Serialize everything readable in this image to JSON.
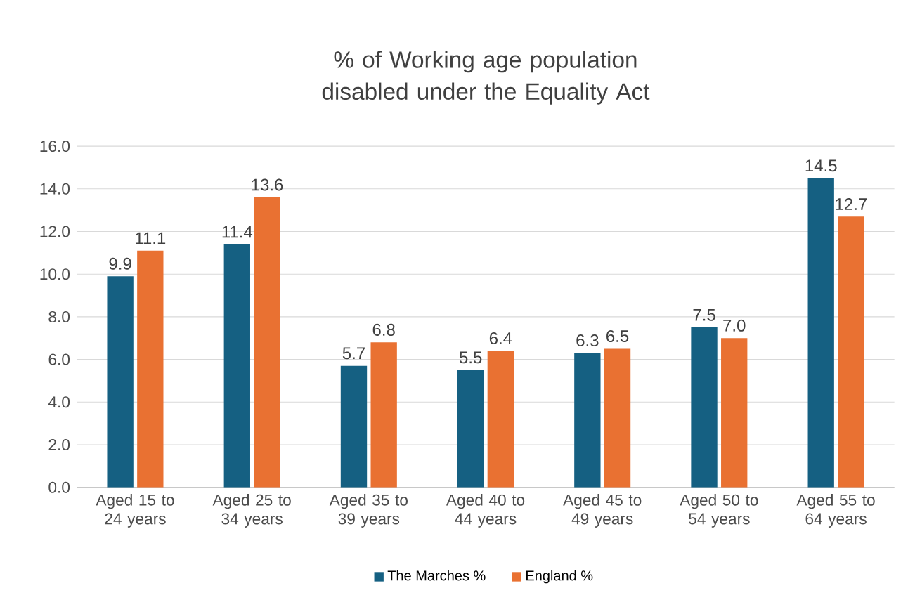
{
  "chart_data": {
    "type": "bar",
    "title": "% of Working age population disabled under the Equality Act",
    "categories": [
      "Aged 15 to 24 years",
      "Aged 25 to 34 years",
      "Aged 35 to 39 years",
      "Aged 40 to 44 years",
      "Aged 45 to 49 years",
      "Aged 50 to 54 years",
      "Aged 55 to 64 years"
    ],
    "series": [
      {
        "name": "The Marches %",
        "color": "#156082",
        "values": [
          9.9,
          11.4,
          5.7,
          5.5,
          6.3,
          7.5,
          14.5
        ],
        "value_labels": [
          "9.9",
          "11.4",
          "5.7",
          "5.5",
          "6.3",
          "7.5",
          "14.5"
        ]
      },
      {
        "name": "England %",
        "color": "#e97132",
        "values": [
          11.1,
          13.6,
          6.8,
          6.4,
          6.5,
          7.0,
          12.7
        ],
        "value_labels": [
          "11.1",
          "13.6",
          "6.8",
          "6.4",
          "6.5",
          "7.0",
          "12.7"
        ]
      }
    ],
    "ylim": [
      0,
      16
    ],
    "yticks": [
      {
        "value": 0,
        "label": "0.0"
      },
      {
        "value": 2,
        "label": "2.0"
      },
      {
        "value": 4,
        "label": "4.0"
      },
      {
        "value": 6,
        "label": "6.0"
      },
      {
        "value": 8,
        "label": "8.0"
      },
      {
        "value": 10,
        "label": "10.0"
      },
      {
        "value": 12,
        "label": "12.0"
      },
      {
        "value": 14,
        "label": "14.0"
      },
      {
        "value": 16,
        "label": "16.0"
      }
    ],
    "grid": "y",
    "legend": "bottom"
  }
}
